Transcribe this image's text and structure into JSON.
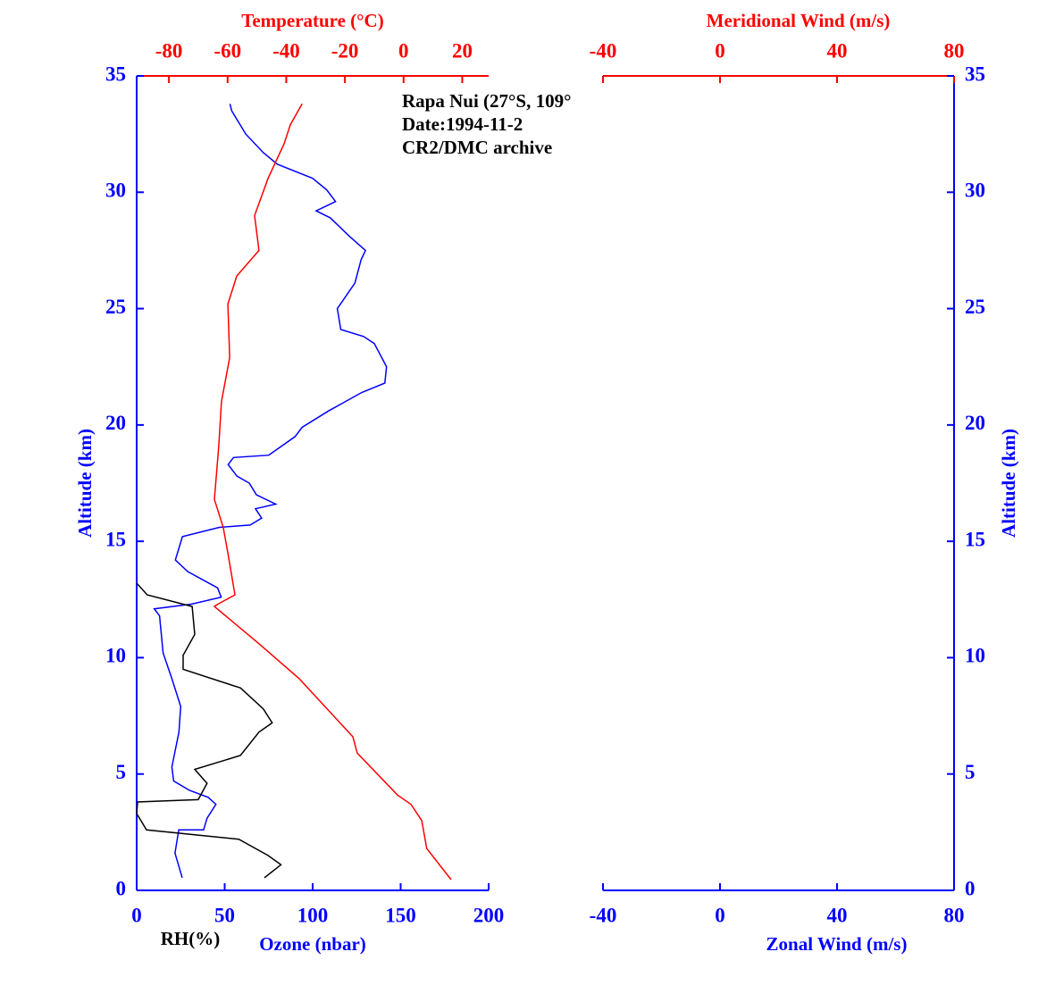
{
  "chart_data": [
    {
      "type": "line",
      "annotations": [
        "Rapa Nui (27°S, 109°",
        "Date:1994-11-2",
        "CR2/DMC archive"
      ],
      "xlabel": "Ozone (nbar)",
      "x2label": "Temperature (°C)",
      "ylabel": "Altitude (km)",
      "rh_label": "RH(%)",
      "x_color": "#0000ff",
      "x2_color": "#ff0000",
      "y_color": "#0000ff",
      "yaxis_side": "left",
      "xlim": [
        0,
        200
      ],
      "xticks": [
        0,
        50,
        100,
        150,
        200
      ],
      "x2lim": [
        -91,
        29
      ],
      "x2ticks": [
        -80,
        -60,
        -40,
        -20,
        0,
        20
      ],
      "ylim": [
        0,
        35
      ],
      "yticks": [
        0,
        5,
        10,
        15,
        20,
        25,
        30,
        35
      ],
      "series": [
        {
          "color": "#0000ff",
          "axis": "x",
          "values": [
            25.9,
            21.8,
            23.9,
            38,
            40,
            45,
            40.6,
            30,
            21,
            20,
            24,
            25,
            20,
            15,
            13,
            10,
            31,
            48,
            46,
            29,
            22,
            26,
            47,
            64.5,
            71,
            67.5,
            79,
            68,
            64,
            57,
            52,
            55,
            75,
            90,
            94,
            109,
            128,
            141,
            142,
            135,
            129,
            116,
            114,
            124,
            127.5,
            130,
            121,
            110,
            102,
            113,
            108,
            100,
            80,
            72,
            62,
            54,
            53
          ],
          "altitude": [
            0.54,
            1.6,
            2.6,
            2.6,
            3.1,
            3.7,
            4.0,
            4.3,
            4.7,
            5.3,
            6.8,
            7.9,
            9.1,
            10.2,
            11.8,
            12.1,
            12.3,
            12.6,
            13.0,
            13.7,
            14.2,
            15.2,
            15.6,
            15.7,
            16.0,
            16.4,
            16.6,
            17.0,
            17.5,
            17.8,
            18.3,
            18.6,
            18.7,
            19.5,
            19.9,
            20.6,
            21.4,
            21.8,
            22.5,
            23.5,
            23.8,
            24.1,
            25.0,
            26.1,
            27.1,
            27.5,
            28.1,
            28.9,
            29.2,
            29.6,
            30.1,
            30.6,
            31.2,
            31.7,
            32.5,
            33.5,
            33.8
          ]
        },
        {
          "color": "#ff0000",
          "axis": "x2",
          "values": [
            16.2,
            7.9,
            6.2,
            2.5,
            -2.1,
            -15.8,
            -17.3,
            -35.6,
            -49.3,
            -64.5,
            -63.3,
            -57.5,
            -59.9,
            -61.5,
            -64.5,
            -63,
            -62.1,
            -59.3,
            -59.9,
            -56.9,
            -49.3,
            -50.8,
            -46.2,
            -40.7,
            -38.6,
            -34.6
          ],
          "altitude": [
            0.46,
            1.8,
            3.0,
            3.7,
            4.1,
            5.9,
            6.6,
            9.1,
            10.6,
            12.2,
            12.3,
            12.7,
            14.5,
            15.6,
            16.8,
            19.1,
            21.0,
            22.9,
            25.2,
            26.4,
            27.5,
            29.0,
            30.6,
            32.1,
            32.9,
            33.8
          ]
        },
        {
          "color": "#000000",
          "axis": "x",
          "values": [
            72.6,
            82,
            74.6,
            58,
            5.6,
            0,
            0.5,
            35,
            40,
            33,
            59,
            69.5,
            77,
            72,
            59,
            46.7,
            26.4,
            26.4,
            33,
            31.5,
            6,
            0
          ],
          "altitude": [
            0.54,
            1.1,
            1.5,
            2.2,
            2.6,
            3.3,
            3.8,
            3.9,
            4.6,
            5.2,
            5.8,
            6.8,
            7.2,
            7.8,
            8.7,
            9.0,
            9.5,
            10.1,
            11.0,
            12.2,
            12.7,
            13.2
          ]
        }
      ]
    },
    {
      "type": "line",
      "xlabel": "Zonal Wind (m/s)",
      "x2label": "Meridional Wind (m/s)",
      "ylabel": "Altitude (km)",
      "x_color": "#0000ff",
      "x2_color": "#ff0000",
      "y_color": "#0000ff",
      "yaxis_side": "right",
      "xlim": [
        -40,
        80
      ],
      "xticks": [
        -40,
        0,
        40,
        80
      ],
      "x2lim": [
        -40,
        80
      ],
      "x2ticks": [
        -40,
        0,
        40,
        80
      ],
      "ylim": [
        0,
        35
      ],
      "yticks": [
        0,
        5,
        10,
        15,
        20,
        25,
        30,
        35
      ],
      "series": []
    }
  ]
}
